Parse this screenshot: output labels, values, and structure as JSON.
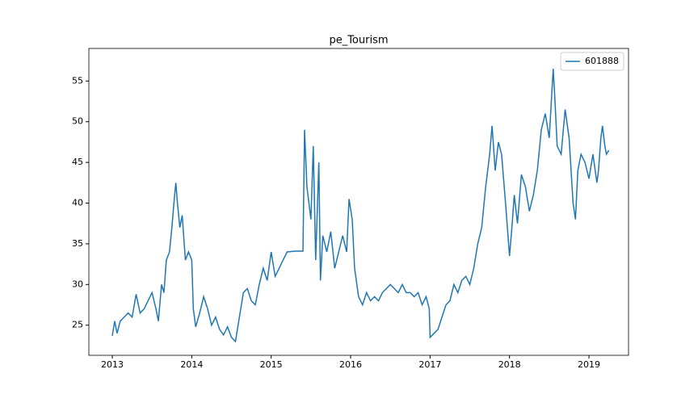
{
  "chart_data": {
    "type": "line",
    "title": "pe_Tourism",
    "x": [
      2013.0,
      2013.03,
      2013.06,
      2013.1,
      2013.15,
      2013.2,
      2013.25,
      2013.3,
      2013.35,
      2013.4,
      2013.45,
      2013.5,
      2013.55,
      2013.58,
      2013.62,
      2013.65,
      2013.68,
      2013.72,
      2013.75,
      2013.78,
      2013.8,
      2013.82,
      2013.85,
      2013.88,
      2013.92,
      2013.96,
      2014.0,
      2014.02,
      2014.05,
      2014.1,
      2014.15,
      2014.2,
      2014.25,
      2014.3,
      2014.35,
      2014.4,
      2014.45,
      2014.5,
      2014.55,
      2014.6,
      2014.65,
      2014.7,
      2014.75,
      2014.8,
      2014.85,
      2014.9,
      2014.95,
      2015.0,
      2015.05,
      2015.1,
      2015.15,
      2015.2,
      2015.3,
      2015.4,
      2015.42,
      2015.45,
      2015.5,
      2015.53,
      2015.56,
      2015.6,
      2015.62,
      2015.65,
      2015.7,
      2015.75,
      2015.8,
      2015.85,
      2015.9,
      2015.95,
      2015.98,
      2016.02,
      2016.05,
      2016.1,
      2016.15,
      2016.2,
      2016.25,
      2016.3,
      2016.35,
      2016.4,
      2016.45,
      2016.5,
      2016.55,
      2016.6,
      2016.65,
      2016.7,
      2016.75,
      2016.8,
      2016.85,
      2016.9,
      2016.95,
      2016.99,
      2017.0,
      2017.05,
      2017.1,
      2017.15,
      2017.2,
      2017.25,
      2017.3,
      2017.35,
      2017.4,
      2017.45,
      2017.5,
      2017.55,
      2017.6,
      2017.65,
      2017.7,
      2017.75,
      2017.78,
      2017.82,
      2017.86,
      2017.9,
      2017.95,
      2018.0,
      2018.03,
      2018.06,
      2018.1,
      2018.15,
      2018.2,
      2018.25,
      2018.3,
      2018.35,
      2018.4,
      2018.45,
      2018.5,
      2018.55,
      2018.57,
      2018.6,
      2018.65,
      2018.7,
      2018.75,
      2018.8,
      2018.83,
      2018.86,
      2018.9,
      2018.95,
      2019.0,
      2019.05,
      2019.1,
      2019.12,
      2019.15,
      2019.17,
      2019.2,
      2019.22,
      2019.25
    ],
    "series": [
      {
        "name": "601888",
        "color": "#1f77b4",
        "values": [
          23.7,
          25.5,
          24.0,
          25.5,
          26.0,
          26.5,
          26.0,
          28.8,
          26.5,
          27.0,
          28.0,
          29.0,
          27.0,
          25.5,
          30.0,
          29.0,
          33.0,
          34.0,
          37.0,
          40.5,
          42.5,
          40.0,
          37.0,
          38.5,
          33.0,
          34.0,
          33.0,
          27.0,
          24.8,
          26.5,
          28.5,
          27.0,
          25.0,
          26.0,
          24.5,
          23.8,
          24.8,
          23.5,
          23.0,
          26.0,
          29.0,
          29.5,
          28.0,
          27.5,
          30.0,
          32.0,
          30.5,
          34.0,
          31.0,
          32.0,
          33.0,
          34.0,
          34.1,
          34.1,
          49.0,
          42.0,
          38.0,
          47.0,
          33.0,
          45.0,
          30.5,
          36.0,
          34.0,
          36.5,
          32.0,
          34.0,
          36.0,
          34.0,
          40.5,
          38.0,
          32.0,
          28.5,
          27.5,
          29.0,
          28.0,
          28.5,
          28.0,
          29.0,
          29.5,
          30.0,
          29.5,
          29.0,
          30.0,
          29.0,
          29.0,
          28.5,
          29.0,
          27.5,
          28.5,
          27.0,
          23.5,
          24.0,
          24.5,
          26.0,
          27.5,
          28.0,
          30.0,
          29.0,
          30.5,
          31.0,
          30.0,
          32.0,
          35.0,
          37.0,
          42.0,
          46.0,
          49.5,
          44.0,
          47.5,
          46.0,
          40.0,
          33.5,
          37.0,
          41.0,
          37.5,
          43.5,
          42.0,
          39.0,
          41.0,
          44.0,
          49.0,
          51.0,
          48.0,
          56.5,
          53.0,
          47.0,
          46.0,
          51.5,
          48.0,
          40.0,
          38.0,
          44.0,
          46.0,
          45.0,
          43.0,
          46.0,
          42.5,
          44.0,
          48.0,
          49.5,
          47.0,
          46.0,
          46.5
        ]
      }
    ],
    "xlim": [
      2012.705,
      2019.498
    ],
    "xticks": [
      2013,
      2014,
      2015,
      2016,
      2017,
      2018,
      2019
    ],
    "ylim": [
      21.3,
      59.0
    ],
    "yticks": [
      25,
      30,
      35,
      40,
      45,
      50,
      55
    ],
    "legend": "upper right"
  }
}
